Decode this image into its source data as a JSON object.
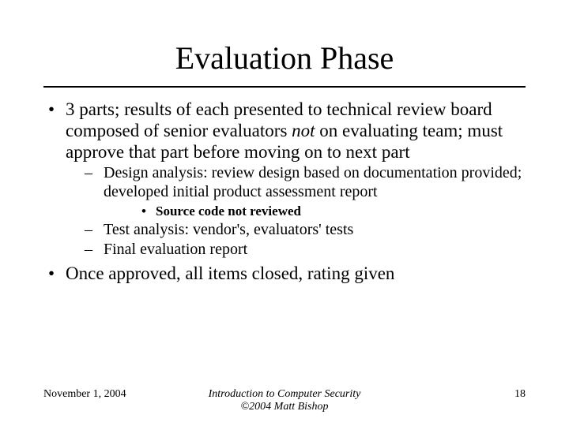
{
  "title": "Evaluation Phase",
  "bullet1_a": "3 parts; results of each presented to technical review board composed of senior evaluators ",
  "bullet1_b": "not",
  "bullet1_c": " on evaluating team; must approve that part before moving on to next part",
  "sub1": "Design analysis: review design based on documentation provided; developed initial product assessment report",
  "subsub1": "Source code not reviewed",
  "sub2": "Test analysis: vendor's, evaluators' tests",
  "sub3": "Final evaluation report",
  "bullet2": "Once approved, all items closed, rating given",
  "footer_date": "November 1, 2004",
  "footer_center1": "Introduction to Computer Security",
  "footer_center2": "©2004 Matt Bishop",
  "footer_page": "18"
}
